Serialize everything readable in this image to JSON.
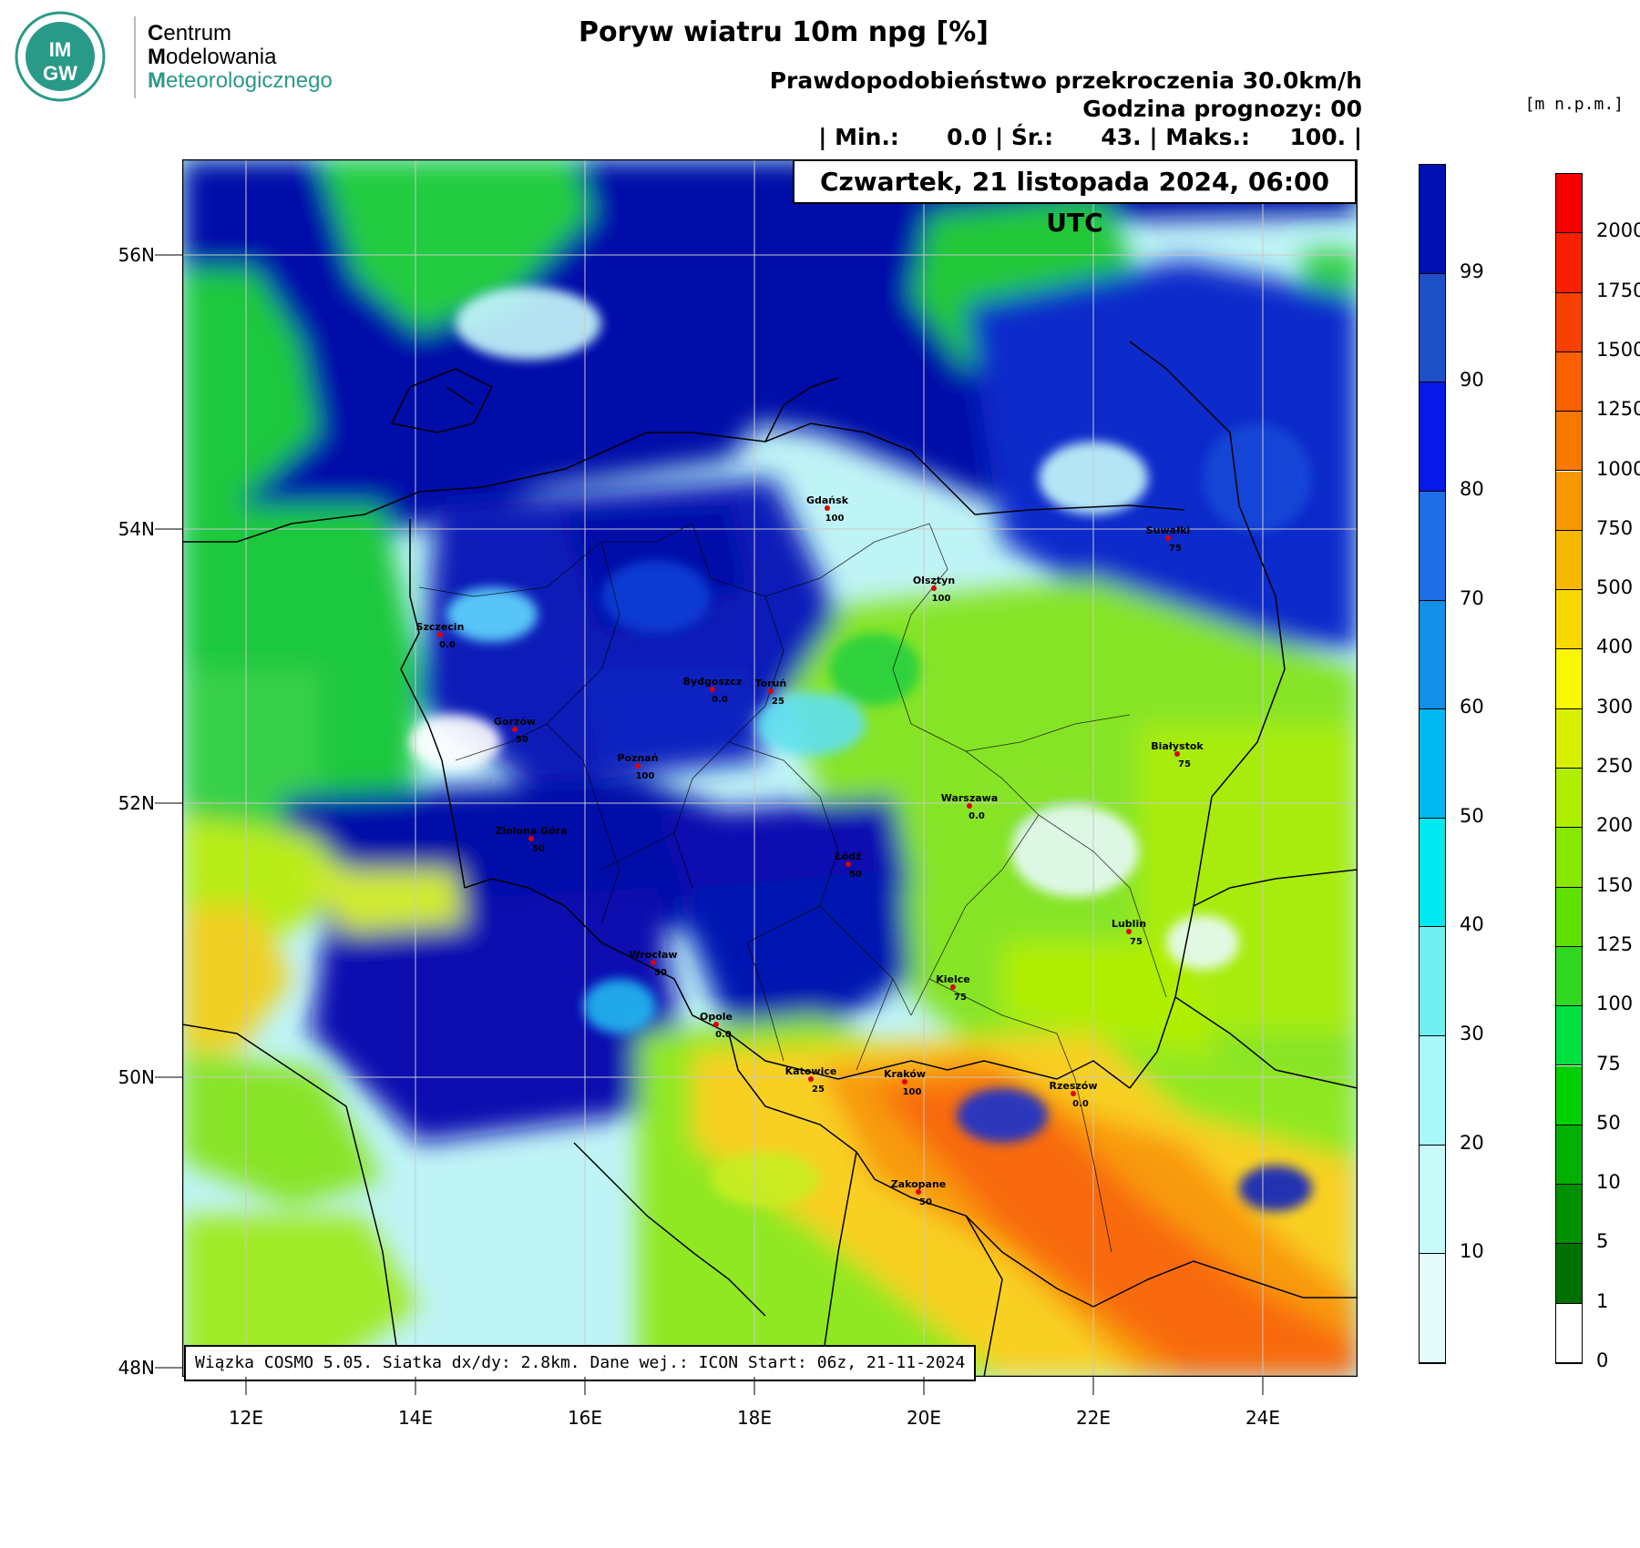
{
  "logo": {
    "line1_initial": "C",
    "line1_rest": "entrum",
    "line2_initial": "M",
    "line2_rest": "odelowania",
    "line3_initial": "M",
    "line3_rest": "eteorologicznego",
    "badge_top": "IM",
    "badge_bottom": "GW",
    "badge_color": "#2a9a88"
  },
  "header": {
    "title": "Poryw wiatru 10m npg [%]",
    "line1": "Prawdopodobieństwo przekroczenia 30.0km/h",
    "line2": "Godzina prognozy: 00",
    "line3": "| Min.:      0.0 | Śr.:      43. | Maks.:     100. |",
    "date": "Czwartek, 21 listopada 2024, 06:00 UTC"
  },
  "footer": "Wiązka COSMO 5.05. Siatka dx/dy: 2.8km. Dane wej.: ICON Start: 06z, 21-11-2024",
  "axes": {
    "lat_labels": [
      "56N",
      "54N",
      "52N",
      "50N",
      "48N"
    ],
    "lon_labels": [
      "12E",
      "14E",
      "16E",
      "18E",
      "20E",
      "22E",
      "24E"
    ]
  },
  "prob_scale": {
    "labels": [
      "99",
      "90",
      "80",
      "70",
      "60",
      "50",
      "40",
      "30",
      "20",
      "10"
    ],
    "colors": [
      "#0010b0",
      "#1e50c8",
      "#0818e8",
      "#1e6ee8",
      "#1290e8",
      "#00b8f0",
      "#00e8f0",
      "#70f0f0",
      "#a8f8f8",
      "#c8fafa",
      "#e4fcfc"
    ]
  },
  "height_scale": {
    "unit": "[m n.p.m.]",
    "labels": [
      "2000",
      "1750",
      "1500",
      "1250",
      "1000",
      "750",
      "500",
      "400",
      "300",
      "250",
      "200",
      "150",
      "125",
      "100",
      "75",
      "50",
      "10",
      "5",
      "1",
      "0"
    ],
    "colors": [
      "#f80000",
      "#f82000",
      "#f84000",
      "#f86000",
      "#f87800",
      "#f89800",
      "#f8b800",
      "#f8d800",
      "#f8f800",
      "#d8f000",
      "#b0ee00",
      "#88e800",
      "#60e000",
      "#30d820",
      "#00e040",
      "#00d000",
      "#00b000",
      "#009000",
      "#007000",
      "#ffffff"
    ]
  },
  "cities": [
    {
      "name": "Gdańsk",
      "value": "100"
    },
    {
      "name": "Suwałki",
      "value": "75"
    },
    {
      "name": "Olsztyn",
      "value": "100"
    },
    {
      "name": "Szczecin",
      "value": "0.0"
    },
    {
      "name": "Bydgoszcz",
      "value": "0.0"
    },
    {
      "name": "Toruń",
      "value": "25"
    },
    {
      "name": "Białystok",
      "value": "75"
    },
    {
      "name": "Gorzów",
      "value": "50"
    },
    {
      "name": "Poznań",
      "value": "100"
    },
    {
      "name": "Warszawa",
      "value": "0.0"
    },
    {
      "name": "Zielona Góra",
      "value": "50"
    },
    {
      "name": "Łódź",
      "value": "50"
    },
    {
      "name": "Lublin",
      "value": "75"
    },
    {
      "name": "Wrocław",
      "value": "50"
    },
    {
      "name": "Kielce",
      "value": "75"
    },
    {
      "name": "Opole",
      "value": "0.0"
    },
    {
      "name": "Katowice",
      "value": "25"
    },
    {
      "name": "Kraków",
      "value": "100"
    },
    {
      "name": "Rzeszów",
      "value": "0.0"
    },
    {
      "name": "Zakopane",
      "value": "50"
    }
  ]
}
